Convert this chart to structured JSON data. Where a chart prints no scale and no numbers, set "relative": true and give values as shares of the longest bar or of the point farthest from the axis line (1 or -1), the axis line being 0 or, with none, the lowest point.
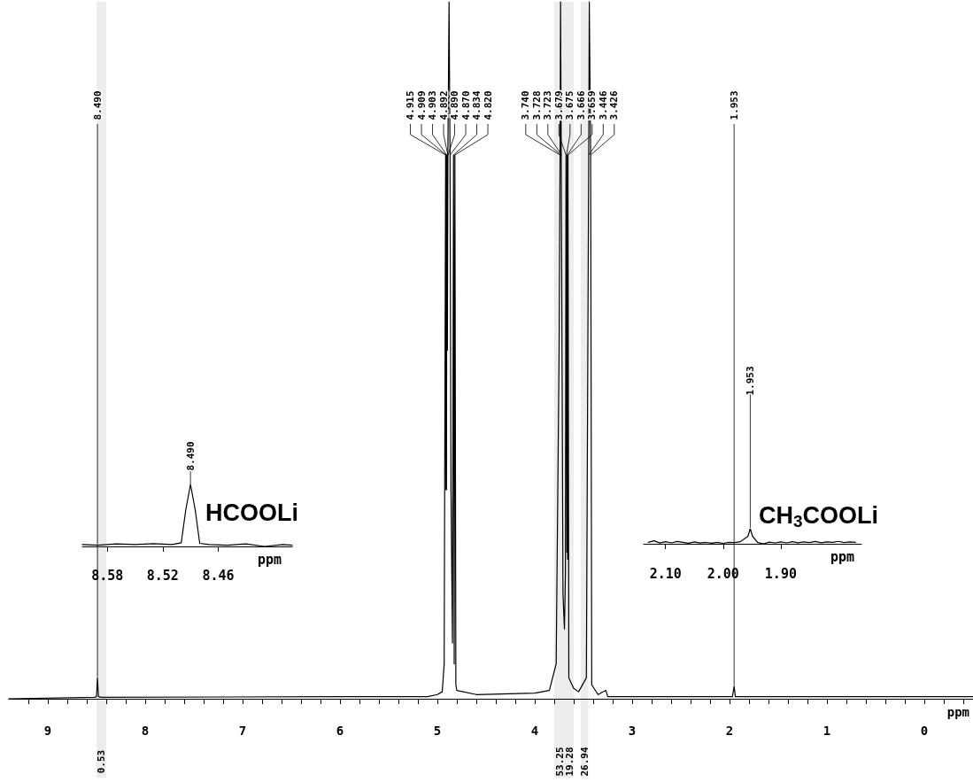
{
  "chart_data": [
    {
      "type": "line",
      "relative": true,
      "xlabel": "ppm",
      "color": "#000000",
      "xlim": [
        9.4,
        -0.5
      ],
      "xticks": [
        {
          "value": 9.2,
          "label": null
        },
        9,
        {
          "value": 8.8,
          "label": null
        },
        {
          "value": 8.6,
          "label": null
        },
        {
          "value": 8.4,
          "label": null
        },
        {
          "value": 8.2,
          "label": null
        },
        8,
        {
          "value": 7.8,
          "label": null
        },
        {
          "value": 7.6,
          "label": null
        },
        {
          "value": 7.4,
          "label": null
        },
        {
          "value": 7.2,
          "label": null
        },
        7,
        {
          "value": 6.8,
          "label": null
        },
        {
          "value": 6.6,
          "label": null
        },
        {
          "value": 6.4,
          "label": null
        },
        {
          "value": 6.2,
          "label": null
        },
        6,
        {
          "value": 5.8,
          "label": null
        },
        {
          "value": 5.6,
          "label": null
        },
        {
          "value": 5.4,
          "label": null
        },
        {
          "value": 5.2,
          "label": null
        },
        5,
        {
          "value": 4.8,
          "label": null
        },
        {
          "value": 4.6,
          "label": null
        },
        {
          "value": 4.4,
          "label": null
        },
        {
          "value": 4.2,
          "label": null
        },
        4,
        {
          "value": 3.8,
          "label": null
        },
        {
          "value": 3.6,
          "label": null
        },
        {
          "value": 3.4,
          "label": null
        },
        {
          "value": 3.2,
          "label": null
        },
        3,
        {
          "value": 2.8,
          "label": null
        },
        {
          "value": 2.6,
          "label": null
        },
        {
          "value": 2.4,
          "label": null
        },
        {
          "value": 2.2,
          "label": null
        },
        2,
        {
          "value": 1.8,
          "label": null
        },
        {
          "value": 1.6,
          "label": null
        },
        {
          "value": 1.4,
          "label": null
        },
        {
          "value": 1.2,
          "label": null
        },
        1,
        {
          "value": 0.8,
          "label": null
        },
        {
          "value": 0.6,
          "label": null
        },
        {
          "value": 0.4,
          "label": null
        },
        {
          "value": 0.2,
          "label": null
        },
        0,
        {
          "value": -0.2,
          "label": null
        },
        {
          "value": -0.4,
          "label": null
        }
      ],
      "x": [
        9.4,
        8.52,
        8.5,
        8.49,
        8.48,
        8.45,
        6.0,
        5.1,
        5.0,
        4.95,
        4.93,
        4.915,
        4.912,
        4.909,
        4.906,
        4.903,
        4.897,
        4.892,
        4.89,
        4.88,
        4.87,
        4.86,
        4.845,
        4.834,
        4.827,
        4.82,
        4.81,
        4.8,
        4.6,
        4.0,
        3.85,
        3.78,
        3.75,
        3.74,
        3.735,
        3.728,
        3.723,
        3.71,
        3.695,
        3.685,
        3.679,
        3.675,
        3.67,
        3.666,
        3.662,
        3.659,
        3.65,
        3.6,
        3.55,
        3.47,
        3.455,
        3.446,
        3.44,
        3.426,
        3.415,
        3.35,
        3.27,
        3.25,
        2.5,
        1.97,
        1.953,
        1.94,
        -0.5
      ],
      "values": [
        0,
        0.002,
        0.003,
        0.03,
        0.003,
        0.002,
        0.003,
        0.003,
        0.006,
        0.01,
        0.05,
        0.78,
        0.3,
        0.78,
        0.3,
        0.78,
        0.5,
        0.78,
        0.78,
        1,
        0.78,
        0.3,
        0.08,
        0.78,
        0.05,
        0.78,
        0.02,
        0.012,
        0.006,
        0.008,
        0.012,
        0.05,
        0.5,
        0.78,
        1,
        0.78,
        0.78,
        0.15,
        0.1,
        0.18,
        0.78,
        0.78,
        0.21,
        0.78,
        0.2,
        0.78,
        0.03,
        0.015,
        0.01,
        0.03,
        0.5,
        0.78,
        1,
        0.78,
        0.02,
        0.006,
        0.012,
        0.003,
        0.003,
        0.003,
        0.018,
        0.003,
        0.003
      ],
      "annotations": [
        {
          "text": "8.490",
          "x": 8.49,
          "y": 0.03
        },
        {
          "text": "4.915",
          "x": 4.915,
          "y": 0.78
        },
        {
          "text": "4.909",
          "x": 4.909,
          "y": 0.78
        },
        {
          "text": "4.903",
          "x": 4.903,
          "y": 0.78
        },
        {
          "text": "4.892",
          "x": 4.892,
          "y": 0.78
        },
        {
          "text": "4.890",
          "x": 4.89,
          "y": 0.78
        },
        {
          "text": "4.870",
          "x": 4.87,
          "y": 0.78
        },
        {
          "text": "4.834",
          "x": 4.834,
          "y": 0.78
        },
        {
          "text": "4.820",
          "x": 4.82,
          "y": 0.78
        },
        {
          "text": "3.740",
          "x": 3.74,
          "y": 0.78
        },
        {
          "text": "3.728",
          "x": 3.728,
          "y": 0.78
        },
        {
          "text": "3.723",
          "x": 3.723,
          "y": 0.78
        },
        {
          "text": "3.679",
          "x": 3.679,
          "y": 0.78
        },
        {
          "text": "3.675",
          "x": 3.675,
          "y": 0.78
        },
        {
          "text": "3.666",
          "x": 3.666,
          "y": 0.78
        },
        {
          "text": "3.659",
          "x": 3.659,
          "y": 0.78
        },
        {
          "text": "3.446",
          "x": 3.446,
          "y": 0.78
        },
        {
          "text": "3.426",
          "x": 3.426,
          "y": 0.78
        },
        {
          "text": "1.953",
          "x": 1.953,
          "y": 0.018
        }
      ],
      "bands": [
        {
          "axis": "x",
          "from": 8.5,
          "to": 8.4,
          "label": "0.53"
        },
        {
          "axis": "x",
          "from": 3.8,
          "to": 3.69,
          "label": "53.25"
        },
        {
          "axis": "x",
          "from": 3.69,
          "to": 3.6,
          "label": "19.28"
        },
        {
          "axis": "x",
          "from": 3.53,
          "to": 3.45,
          "label": "26.94"
        }
      ]
    },
    {
      "type": "line",
      "relative": true,
      "xlabel": "ppm",
      "color": "#000000",
      "xlim": [
        8.607,
        8.38
      ],
      "xticks": [
        8.58,
        8.52,
        8.46
      ],
      "x": [
        8.607,
        8.59,
        8.57,
        8.55,
        8.53,
        8.51,
        8.5,
        8.495,
        8.49,
        8.485,
        8.48,
        8.47,
        8.45,
        8.43,
        8.41,
        8.39,
        8.38
      ],
      "values": [
        0.03,
        0.02,
        0.04,
        0.03,
        0.045,
        0.03,
        0.06,
        0.6,
        1,
        0.6,
        0.05,
        0.03,
        0.02,
        0.04,
        0,
        0.03,
        0.02
      ],
      "annotations": [
        "HCOOLi",
        {
          "text": "8.490",
          "x": 8.49,
          "y": 1
        }
      ]
    },
    {
      "type": "line",
      "relative": true,
      "xlabel": "ppm",
      "color": "#000000",
      "xlim": [
        2.138,
        1.76
      ],
      "xticks": [
        {
          "value": 2.1,
          "label": "2.10"
        },
        {
          "value": 2,
          "label": "2.00"
        },
        {
          "value": 1.9,
          "label": "1.90"
        }
      ],
      "x": [
        2.13,
        2.12,
        2.11,
        2.1,
        2.09,
        2.08,
        2.07,
        2.06,
        2.05,
        2.04,
        2.03,
        2.02,
        2.01,
        2.0,
        1.99,
        1.98,
        1.97,
        1.957,
        1.953,
        1.949,
        1.94,
        1.93,
        1.92,
        1.91,
        1.9,
        1.89,
        1.88,
        1.87,
        1.86,
        1.85,
        1.84,
        1.83,
        1.82,
        1.81,
        1.8,
        1.79,
        1.78,
        1.77
      ],
      "values": [
        0.1,
        0.2,
        0.05,
        0.14,
        0.06,
        0.15,
        0.1,
        0.04,
        0.12,
        0.05,
        0.09,
        0.04,
        0.1,
        0.03,
        0.1,
        0.08,
        0.14,
        0.5,
        1,
        0.5,
        0.08,
        0,
        0.11,
        0.06,
        0.12,
        0.06,
        0.14,
        0.07,
        0.13,
        0.08,
        0.15,
        0.07,
        0.12,
        0.1,
        0.16,
        0.08,
        0.13,
        0.1
      ],
      "annotations": [
        "CH$_{3}$COOLi",
        {
          "text": "1.953",
          "x": 1.953,
          "y": 1
        }
      ]
    }
  ]
}
